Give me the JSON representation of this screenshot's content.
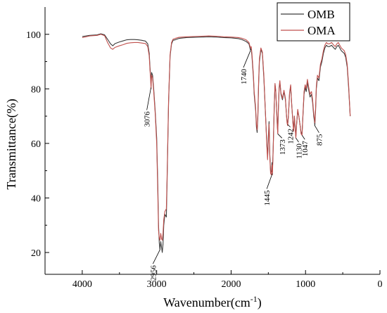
{
  "chart_data": {
    "type": "line",
    "xlabel": "Wavenumber(cm",
    "xlabel_sup": "-1",
    "xlabel_tail": ")",
    "ylabel": "Transmittance(%)",
    "xlim": [
      4500,
      0
    ],
    "ylim": [
      12,
      110
    ],
    "x_ticks": [
      4000,
      3000,
      2000,
      1000,
      0
    ],
    "y_ticks": [
      20,
      40,
      60,
      80,
      100
    ],
    "grid": false,
    "legend_position": "top-right",
    "series": [
      {
        "name": "OMB",
        "color": "#3a3a3a",
        "points": [
          [
            4000,
            99.2
          ],
          [
            3900,
            99.6
          ],
          [
            3800,
            99.8
          ],
          [
            3750,
            100.2
          ],
          [
            3700,
            99.8
          ],
          [
            3660,
            98.2
          ],
          [
            3620,
            96.5
          ],
          [
            3590,
            95.8
          ],
          [
            3560,
            96.6
          ],
          [
            3500,
            97.2
          ],
          [
            3450,
            97.6
          ],
          [
            3400,
            98.0
          ],
          [
            3350,
            98.1
          ],
          [
            3300,
            98.1
          ],
          [
            3250,
            98.0
          ],
          [
            3200,
            97.8
          ],
          [
            3150,
            97.5
          ],
          [
            3120,
            96.5
          ],
          [
            3100,
            93.0
          ],
          [
            3090,
            88.0
          ],
          [
            3080,
            84.0
          ],
          [
            3076,
            81.0
          ],
          [
            3068,
            86.0
          ],
          [
            3055,
            85.0
          ],
          [
            3040,
            80.0
          ],
          [
            3020,
            72.0
          ],
          [
            3000,
            62.0
          ],
          [
            2985,
            45.0
          ],
          [
            2975,
            30.0
          ],
          [
            2965,
            23.5
          ],
          [
            2956,
            21.0
          ],
          [
            2945,
            24.0
          ],
          [
            2935,
            22.0
          ],
          [
            2925,
            20.0
          ],
          [
            2915,
            23.0
          ],
          [
            2905,
            30.0
          ],
          [
            2890,
            34.0
          ],
          [
            2870,
            33.0
          ],
          [
            2860,
            46.0
          ],
          [
            2840,
            75.0
          ],
          [
            2820,
            92.0
          ],
          [
            2800,
            96.5
          ],
          [
            2780,
            97.8
          ],
          [
            2750,
            98.0
          ],
          [
            2700,
            98.5
          ],
          [
            2600,
            98.8
          ],
          [
            2500,
            98.9
          ],
          [
            2400,
            99.0
          ],
          [
            2300,
            99.1
          ],
          [
            2200,
            99.0
          ],
          [
            2100,
            98.8
          ],
          [
            2000,
            98.7
          ],
          [
            1900,
            98.4
          ],
          [
            1850,
            98.0
          ],
          [
            1800,
            97.4
          ],
          [
            1760,
            96.5
          ],
          [
            1745,
            94.8
          ],
          [
            1740,
            94.2
          ],
          [
            1730,
            94.8
          ],
          [
            1720,
            92.0
          ],
          [
            1700,
            84.0
          ],
          [
            1690,
            78.0
          ],
          [
            1670,
            72.0
          ],
          [
            1660,
            66.0
          ],
          [
            1650,
            64.0
          ],
          [
            1640,
            70.0
          ],
          [
            1630,
            82.0
          ],
          [
            1620,
            90.0
          ],
          [
            1600,
            94.5
          ],
          [
            1580,
            93.0
          ],
          [
            1560,
            84.0
          ],
          [
            1540,
            72.0
          ],
          [
            1520,
            60.0
          ],
          [
            1510,
            55.0
          ],
          [
            1500,
            62.0
          ],
          [
            1490,
            68.0
          ],
          [
            1480,
            56.0
          ],
          [
            1470,
            50.0
          ],
          [
            1460,
            49.5
          ],
          [
            1450,
            53.0
          ],
          [
            1445,
            49.5
          ],
          [
            1435,
            58.0
          ],
          [
            1420,
            74.0
          ],
          [
            1410,
            81.5
          ],
          [
            1400,
            79.0
          ],
          [
            1385,
            70.0
          ],
          [
            1380,
            67.0
          ],
          [
            1373,
            64.0
          ],
          [
            1368,
            70.0
          ],
          [
            1355,
            80.0
          ],
          [
            1345,
            82.5
          ],
          [
            1330,
            78.0
          ],
          [
            1310,
            76.0
          ],
          [
            1290,
            79.0
          ],
          [
            1270,
            76.0
          ],
          [
            1255,
            70.0
          ],
          [
            1248,
            68.0
          ],
          [
            1240,
            67.0
          ],
          [
            1230,
            70.0
          ],
          [
            1215,
            78.0
          ],
          [
            1200,
            81.0
          ],
          [
            1185,
            74.0
          ],
          [
            1170,
            68.0
          ],
          [
            1160,
            65.0
          ],
          [
            1150,
            70.0
          ],
          [
            1140,
            66.0
          ],
          [
            1130,
            62.5
          ],
          [
            1120,
            67.0
          ],
          [
            1105,
            72.0
          ],
          [
            1090,
            70.0
          ],
          [
            1075,
            67.0
          ],
          [
            1060,
            64.0
          ],
          [
            1047,
            63.5
          ],
          [
            1035,
            70.0
          ],
          [
            1020,
            78.0
          ],
          [
            1005,
            80.5
          ],
          [
            990,
            79.0
          ],
          [
            975,
            82.5
          ],
          [
            960,
            80.0
          ],
          [
            940,
            77.0
          ],
          [
            920,
            78.0
          ],
          [
            905,
            75.0
          ],
          [
            890,
            70.0
          ],
          [
            880,
            68.0
          ],
          [
            875,
            66.5
          ],
          [
            865,
            72.0
          ],
          [
            855,
            80.0
          ],
          [
            840,
            84.0
          ],
          [
            820,
            83.0
          ],
          [
            800,
            88.0
          ],
          [
            780,
            90.0
          ],
          [
            760,
            93.0
          ],
          [
            740,
            95.0
          ],
          [
            720,
            96.0
          ],
          [
            700,
            95.5
          ],
          [
            680,
            95.5
          ],
          [
            650,
            96.0
          ],
          [
            620,
            95.0
          ],
          [
            600,
            94.5
          ],
          [
            580,
            95.5
          ],
          [
            560,
            96.0
          ],
          [
            540,
            95.0
          ],
          [
            520,
            94.0
          ],
          [
            500,
            93.5
          ],
          [
            480,
            93.0
          ],
          [
            460,
            91.5
          ],
          [
            440,
            88.0
          ],
          [
            420,
            80.0
          ],
          [
            400,
            70.0
          ]
        ]
      },
      {
        "name": "OMA",
        "color": "#c0504d",
        "points": [
          [
            4000,
            98.8
          ],
          [
            3900,
            99.4
          ],
          [
            3800,
            99.6
          ],
          [
            3750,
            100.0
          ],
          [
            3700,
            99.5
          ],
          [
            3660,
            97.0
          ],
          [
            3620,
            95.0
          ],
          [
            3590,
            94.5
          ],
          [
            3560,
            95.2
          ],
          [
            3500,
            95.8
          ],
          [
            3450,
            96.2
          ],
          [
            3400,
            96.7
          ],
          [
            3350,
            96.9
          ],
          [
            3300,
            97.0
          ],
          [
            3250,
            97.0
          ],
          [
            3200,
            96.8
          ],
          [
            3150,
            96.6
          ],
          [
            3120,
            95.5
          ],
          [
            3100,
            92.0
          ],
          [
            3090,
            87.0
          ],
          [
            3080,
            83.0
          ],
          [
            3076,
            80.0
          ],
          [
            3068,
            85.0
          ],
          [
            3055,
            84.0
          ],
          [
            3040,
            79.0
          ],
          [
            3020,
            71.0
          ],
          [
            3000,
            60.0
          ],
          [
            2985,
            42.0
          ],
          [
            2975,
            28.0
          ],
          [
            2965,
            25.5
          ],
          [
            2956,
            24.5
          ],
          [
            2945,
            27.0
          ],
          [
            2935,
            25.0
          ],
          [
            2925,
            24.5
          ],
          [
            2915,
            27.0
          ],
          [
            2905,
            32.0
          ],
          [
            2890,
            35.0
          ],
          [
            2870,
            36.0
          ],
          [
            2860,
            48.0
          ],
          [
            2840,
            76.0
          ],
          [
            2820,
            92.5
          ],
          [
            2800,
            97.0
          ],
          [
            2780,
            98.2
          ],
          [
            2750,
            98.5
          ],
          [
            2700,
            98.9
          ],
          [
            2600,
            99.1
          ],
          [
            2500,
            99.2
          ],
          [
            2400,
            99.3
          ],
          [
            2300,
            99.4
          ],
          [
            2200,
            99.3
          ],
          [
            2100,
            99.1
          ],
          [
            2000,
            99.0
          ],
          [
            1900,
            98.8
          ],
          [
            1850,
            98.5
          ],
          [
            1800,
            98.0
          ],
          [
            1760,
            97.0
          ],
          [
            1745,
            95.5
          ],
          [
            1740,
            95.0
          ],
          [
            1730,
            95.5
          ],
          [
            1720,
            93.0
          ],
          [
            1700,
            85.0
          ],
          [
            1690,
            79.0
          ],
          [
            1670,
            73.0
          ],
          [
            1660,
            67.0
          ],
          [
            1650,
            65.0
          ],
          [
            1640,
            71.0
          ],
          [
            1630,
            83.0
          ],
          [
            1620,
            91.0
          ],
          [
            1600,
            95.0
          ],
          [
            1580,
            93.5
          ],
          [
            1560,
            85.0
          ],
          [
            1540,
            72.0
          ],
          [
            1520,
            59.0
          ],
          [
            1510,
            54.0
          ],
          [
            1500,
            61.0
          ],
          [
            1490,
            67.0
          ],
          [
            1480,
            55.0
          ],
          [
            1470,
            49.0
          ],
          [
            1460,
            48.5
          ],
          [
            1450,
            52.0
          ],
          [
            1445,
            48.5
          ],
          [
            1435,
            57.0
          ],
          [
            1420,
            74.0
          ],
          [
            1410,
            82.0
          ],
          [
            1400,
            79.5
          ],
          [
            1385,
            70.0
          ],
          [
            1380,
            66.5
          ],
          [
            1373,
            63.5
          ],
          [
            1368,
            70.0
          ],
          [
            1355,
            80.5
          ],
          [
            1345,
            83.0
          ],
          [
            1330,
            78.5
          ],
          [
            1310,
            76.5
          ],
          [
            1290,
            79.5
          ],
          [
            1270,
            76.5
          ],
          [
            1255,
            70.0
          ],
          [
            1248,
            67.5
          ],
          [
            1240,
            66.5
          ],
          [
            1230,
            70.0
          ],
          [
            1215,
            78.5
          ],
          [
            1200,
            81.5
          ],
          [
            1185,
            74.0
          ],
          [
            1170,
            67.5
          ],
          [
            1160,
            64.5
          ],
          [
            1150,
            70.0
          ],
          [
            1140,
            65.5
          ],
          [
            1130,
            62.0
          ],
          [
            1120,
            67.0
          ],
          [
            1105,
            72.5
          ],
          [
            1090,
            70.0
          ],
          [
            1075,
            67.0
          ],
          [
            1060,
            63.5
          ],
          [
            1047,
            63.0
          ],
          [
            1035,
            70.5
          ],
          [
            1020,
            79.0
          ],
          [
            1005,
            81.5
          ],
          [
            990,
            80.0
          ],
          [
            975,
            83.5
          ],
          [
            960,
            81.0
          ],
          [
            940,
            78.0
          ],
          [
            920,
            79.0
          ],
          [
            905,
            76.0
          ],
          [
            890,
            71.0
          ],
          [
            880,
            69.0
          ],
          [
            875,
            67.5
          ],
          [
            865,
            73.0
          ],
          [
            855,
            81.0
          ],
          [
            840,
            85.0
          ],
          [
            820,
            84.0
          ],
          [
            800,
            89.0
          ],
          [
            780,
            91.0
          ],
          [
            760,
            94.0
          ],
          [
            740,
            96.0
          ],
          [
            720,
            97.0
          ],
          [
            700,
            96.5
          ],
          [
            680,
            96.5
          ],
          [
            650,
            97.0
          ],
          [
            620,
            96.0
          ],
          [
            600,
            95.5
          ],
          [
            580,
            96.5
          ],
          [
            560,
            97.0
          ],
          [
            540,
            96.0
          ],
          [
            520,
            95.0
          ],
          [
            500,
            94.5
          ],
          [
            480,
            94.0
          ],
          [
            460,
            92.5
          ],
          [
            440,
            89.0
          ],
          [
            420,
            81.0
          ],
          [
            400,
            70.0
          ]
        ]
      }
    ],
    "annotations": [
      {
        "text": "3076",
        "x": 3076,
        "y": 80.5
      },
      {
        "text": "2956",
        "x": 2956,
        "y": 21.0
      },
      {
        "text": "1740",
        "x": 1740,
        "y": 94.0
      },
      {
        "text": "1445",
        "x": 1445,
        "y": 49.0
      },
      {
        "text": "1373",
        "x": 1373,
        "y": 63.5
      },
      {
        "text": "1242",
        "x": 1242,
        "y": 67.0
      },
      {
        "text": "1130",
        "x": 1130,
        "y": 62.0
      },
      {
        "text": "1047",
        "x": 1047,
        "y": 63.0
      },
      {
        "text": "875",
        "x": 875,
        "y": 66.5
      }
    ]
  }
}
